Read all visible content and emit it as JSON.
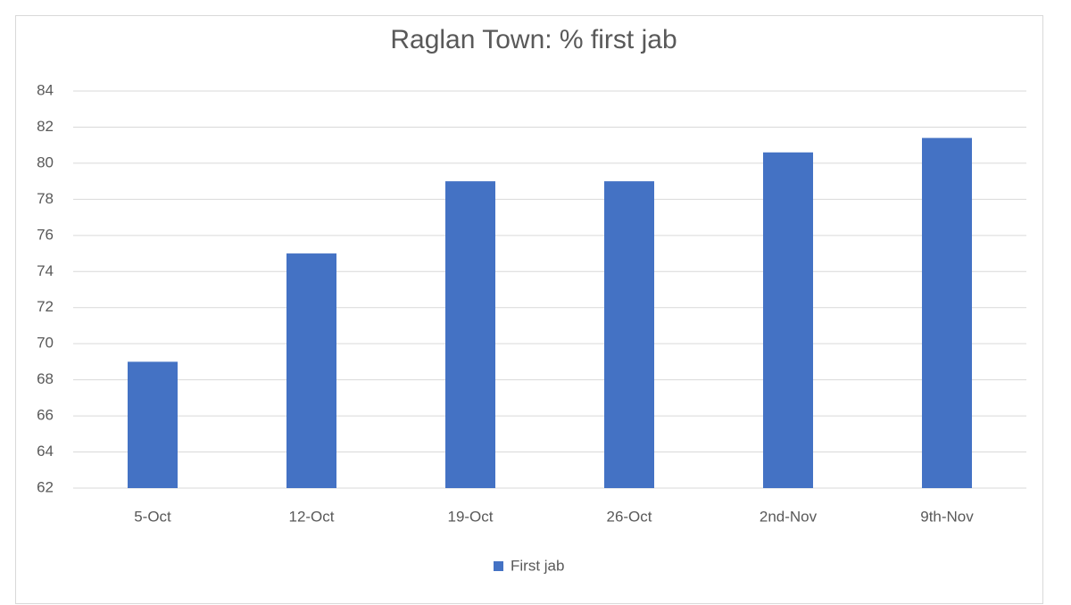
{
  "chart_data": {
    "type": "bar",
    "title": "Raglan Town: % first jab",
    "categories": [
      "5-Oct",
      "12-Oct",
      "19-Oct",
      "26-Oct",
      "2nd-Nov",
      "9th-Nov"
    ],
    "series": [
      {
        "name": "First jab",
        "color": "#4472c4",
        "values": [
          69,
          75,
          79,
          79,
          80.6,
          81.4
        ]
      }
    ],
    "ylim": [
      62,
      84
    ],
    "yticks": [
      62,
      64,
      66,
      68,
      70,
      72,
      74,
      76,
      78,
      80,
      82,
      84
    ],
    "grid": true,
    "legend": "bottom"
  }
}
